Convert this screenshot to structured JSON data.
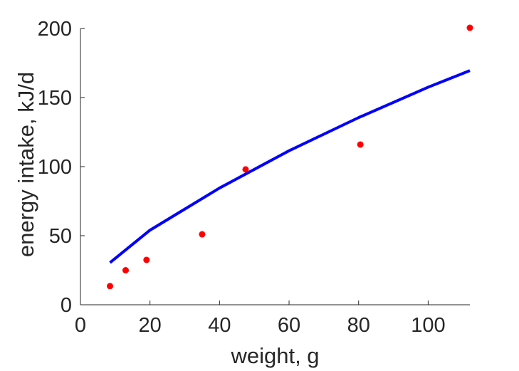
{
  "chart_data": {
    "type": "scatter",
    "title": "",
    "xlabel": "weight, g",
    "ylabel": "energy intake, kJ/d",
    "xlim": [
      0,
      112
    ],
    "ylim": [
      0,
      200
    ],
    "xticks": [
      0,
      20,
      40,
      60,
      80,
      100
    ],
    "yticks": [
      0,
      50,
      100,
      150,
      200
    ],
    "grid": false,
    "legend": "none",
    "series": [
      {
        "kind": "points",
        "color": "#ff0000",
        "x": [
          8.5,
          13,
          19,
          35,
          47.5,
          80.5,
          112
        ],
        "y": [
          13.5,
          25,
          32.5,
          51,
          98,
          116,
          200.5
        ]
      },
      {
        "kind": "fit-line",
        "color": "#0000ff",
        "x": [
          8.5,
          20,
          40,
          60,
          80,
          100,
          112
        ],
        "y": [
          30.5,
          54,
          84.5,
          111.5,
          135.5,
          157.5,
          169.5
        ]
      }
    ]
  }
}
